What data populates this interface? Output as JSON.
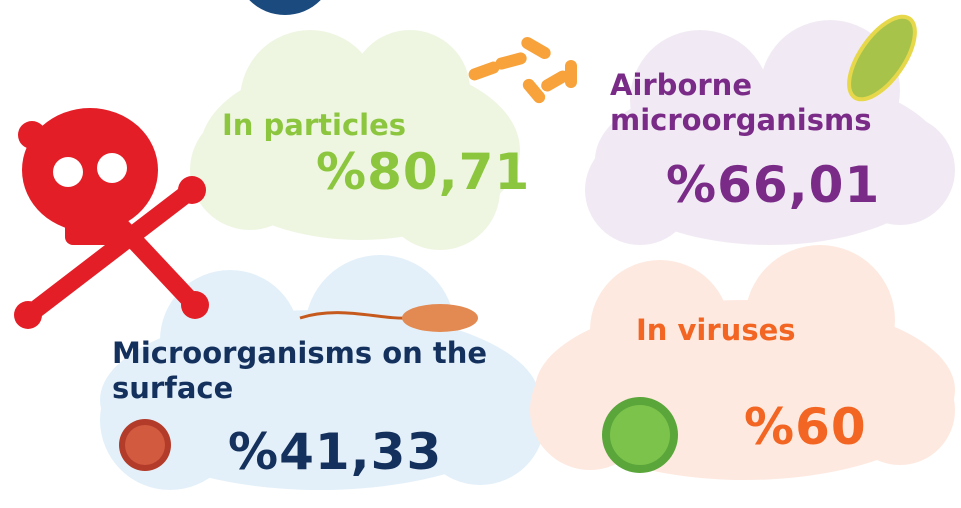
{
  "stats": [
    {
      "label": "In particles",
      "value": "%80,71"
    },
    {
      "label": "Airborne microorganisms",
      "value": "%66,01"
    },
    {
      "label": "Microorganisms on the surface",
      "value": "%41,33"
    },
    {
      "label": "In viruses",
      "value": "%60"
    }
  ]
}
